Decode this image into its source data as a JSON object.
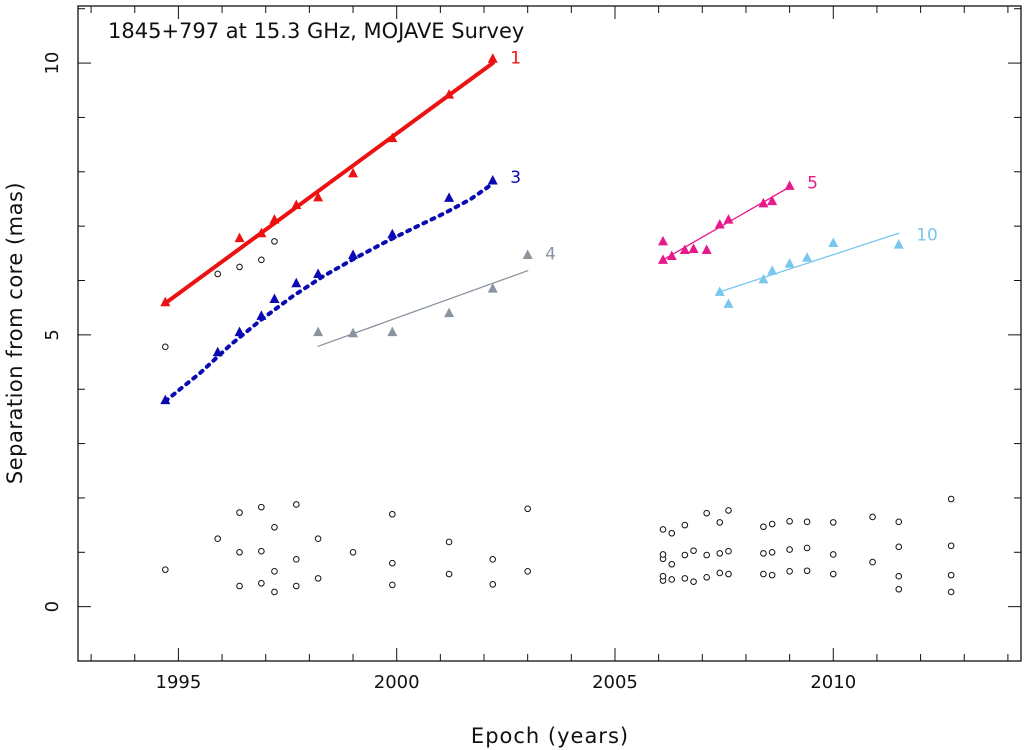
{
  "chart_data": {
    "type": "scatter",
    "title": "1845+797 at 15.3 GHz, MOJAVE Survey",
    "xlabel": "Epoch (years)",
    "ylabel": "Separation from core (mas)",
    "xlim": [
      1992.7,
      2014.3
    ],
    "ylim": [
      -1.0,
      11.05
    ],
    "x_ticks": [
      {
        "value": 1995,
        "label": "1995"
      },
      {
        "value": 2000,
        "label": "2000"
      },
      {
        "value": 2005,
        "label": "2005"
      },
      {
        "value": 2010,
        "label": "2010"
      }
    ],
    "y_ticks": [
      {
        "value": 0,
        "label": "0"
      },
      {
        "value": 5,
        "label": "5"
      },
      {
        "value": 10,
        "label": "10"
      }
    ],
    "series": [
      {
        "name": "1",
        "color": "#ee1111",
        "fit_style": "solid-thick",
        "points": [
          [
            1994.7,
            5.6
          ],
          [
            1996.4,
            6.78
          ],
          [
            1996.9,
            6.87
          ],
          [
            1997.2,
            7.12
          ],
          [
            1997.7,
            7.39
          ],
          [
            1998.2,
            7.53
          ],
          [
            1999.0,
            7.97
          ],
          [
            1999.9,
            8.62
          ],
          [
            2001.2,
            9.42
          ],
          [
            2002.2,
            10.08
          ]
        ],
        "fit": [
          [
            1994.7,
            5.58
          ],
          [
            2002.2,
            10.0
          ]
        ],
        "label_pos": [
          2002.6,
          10.1
        ]
      },
      {
        "name": "3",
        "color": "#0a0ab4",
        "fit_style": "dotted-thick",
        "points": [
          [
            1994.7,
            3.8
          ],
          [
            1995.9,
            4.68
          ],
          [
            1996.4,
            5.05
          ],
          [
            1996.9,
            5.35
          ],
          [
            1997.2,
            5.66
          ],
          [
            1997.7,
            5.95
          ],
          [
            1998.2,
            6.12
          ],
          [
            1999.0,
            6.47
          ],
          [
            1999.9,
            6.85
          ],
          [
            2001.2,
            7.52
          ],
          [
            2002.2,
            7.84
          ]
        ],
        "fit": [
          [
            1994.7,
            3.78
          ],
          [
            1995.5,
            4.3
          ],
          [
            1996.2,
            4.82
          ],
          [
            1996.9,
            5.28
          ],
          [
            1997.6,
            5.7
          ],
          [
            1998.3,
            6.07
          ],
          [
            1999.0,
            6.39
          ],
          [
            1999.7,
            6.69
          ],
          [
            2000.4,
            6.97
          ],
          [
            2001.1,
            7.24
          ],
          [
            2001.7,
            7.5
          ],
          [
            2002.2,
            7.78
          ]
        ],
        "label_pos": [
          2002.6,
          7.9
        ]
      },
      {
        "name": "4",
        "color": "#8a94a0",
        "fit_style": "solid-thin",
        "points": [
          [
            1998.2,
            5.05
          ],
          [
            1999.0,
            5.03
          ],
          [
            1999.9,
            5.05
          ],
          [
            2001.2,
            5.4
          ],
          [
            2002.2,
            5.85
          ],
          [
            2003.0,
            6.47
          ]
        ],
        "fit": [
          [
            1998.2,
            4.79
          ],
          [
            2003.0,
            6.18
          ]
        ],
        "label_pos": [
          2003.4,
          6.5
        ]
      },
      {
        "name": "5",
        "color": "#e8198a",
        "fit_style": "solid-thin",
        "points": [
          [
            2006.1,
            6.72
          ],
          [
            2006.1,
            6.38
          ],
          [
            2006.3,
            6.45
          ],
          [
            2006.6,
            6.56
          ],
          [
            2006.8,
            6.58
          ],
          [
            2007.1,
            6.56
          ],
          [
            2007.4,
            7.03
          ],
          [
            2007.6,
            7.12
          ],
          [
            2008.4,
            7.42
          ],
          [
            2008.6,
            7.46
          ],
          [
            2009.0,
            7.74
          ]
        ],
        "fit": [
          [
            2006.1,
            6.38
          ],
          [
            2009.0,
            7.72
          ]
        ],
        "label_pos": [
          2009.4,
          7.8
        ]
      },
      {
        "name": "10",
        "color": "#79c6ee",
        "fit_style": "solid-thin",
        "points": [
          [
            2007.4,
            5.79
          ],
          [
            2007.6,
            5.57
          ],
          [
            2008.4,
            6.02
          ],
          [
            2008.6,
            6.18
          ],
          [
            2009.0,
            6.31
          ],
          [
            2009.4,
            6.42
          ],
          [
            2010.0,
            6.69
          ],
          [
            2011.5,
            6.66
          ]
        ],
        "fit": [
          [
            2007.4,
            5.79
          ],
          [
            2011.5,
            6.87
          ]
        ],
        "label_pos": [
          2011.9,
          6.85
        ]
      }
    ],
    "unassigned": {
      "marker": "open-circle",
      "color": "#111111",
      "points": [
        [
          1994.7,
          0.68
        ],
        [
          1994.7,
          4.78
        ],
        [
          1995.9,
          1.25
        ],
        [
          1995.9,
          6.12
        ],
        [
          1996.4,
          0.38
        ],
        [
          1996.4,
          1.0
        ],
        [
          1996.4,
          1.73
        ],
        [
          1996.4,
          6.25
        ],
        [
          1996.9,
          0.43
        ],
        [
          1996.9,
          1.02
        ],
        [
          1996.9,
          1.83
        ],
        [
          1996.9,
          6.38
        ],
        [
          1997.2,
          0.27
        ],
        [
          1997.2,
          0.65
        ],
        [
          1997.2,
          1.46
        ],
        [
          1997.2,
          6.72
        ],
        [
          1997.7,
          0.38
        ],
        [
          1997.7,
          0.87
        ],
        [
          1997.7,
          1.88
        ],
        [
          1998.2,
          0.52
        ],
        [
          1998.2,
          1.25
        ],
        [
          1999.0,
          1.0
        ],
        [
          1999.9,
          0.4
        ],
        [
          1999.9,
          0.8
        ],
        [
          1999.9,
          1.7
        ],
        [
          2001.2,
          0.6
        ],
        [
          2001.2,
          1.19
        ],
        [
          2002.2,
          0.41
        ],
        [
          2002.2,
          0.87
        ],
        [
          2003.0,
          0.65
        ],
        [
          2003.0,
          1.8
        ],
        [
          2006.1,
          0.48
        ],
        [
          2006.1,
          0.56
        ],
        [
          2006.1,
          0.88
        ],
        [
          2006.1,
          0.96
        ],
        [
          2006.1,
          1.42
        ],
        [
          2006.3,
          0.5
        ],
        [
          2006.3,
          0.78
        ],
        [
          2006.3,
          1.35
        ],
        [
          2006.6,
          0.52
        ],
        [
          2006.6,
          0.95
        ],
        [
          2006.6,
          1.5
        ],
        [
          2006.8,
          0.46
        ],
        [
          2006.8,
          1.03
        ],
        [
          2007.1,
          0.54
        ],
        [
          2007.1,
          0.95
        ],
        [
          2007.1,
          1.72
        ],
        [
          2007.4,
          0.62
        ],
        [
          2007.4,
          0.98
        ],
        [
          2007.4,
          1.55
        ],
        [
          2007.6,
          0.6
        ],
        [
          2007.6,
          1.02
        ],
        [
          2007.6,
          1.77
        ],
        [
          2008.4,
          0.6
        ],
        [
          2008.4,
          0.98
        ],
        [
          2008.4,
          1.47
        ],
        [
          2008.6,
          0.58
        ],
        [
          2008.6,
          1.0
        ],
        [
          2008.6,
          1.52
        ],
        [
          2009.0,
          0.65
        ],
        [
          2009.0,
          1.05
        ],
        [
          2009.0,
          1.57
        ],
        [
          2009.4,
          0.66
        ],
        [
          2009.4,
          1.08
        ],
        [
          2009.4,
          1.56
        ],
        [
          2010.0,
          0.6
        ],
        [
          2010.0,
          0.96
        ],
        [
          2010.0,
          1.55
        ],
        [
          2010.9,
          0.82
        ],
        [
          2010.9,
          1.65
        ],
        [
          2011.5,
          0.32
        ],
        [
          2011.5,
          0.56
        ],
        [
          2011.5,
          1.1
        ],
        [
          2011.5,
          1.56
        ],
        [
          2012.7,
          0.27
        ],
        [
          2012.7,
          0.58
        ],
        [
          2012.7,
          1.12
        ],
        [
          2012.7,
          1.98
        ]
      ]
    }
  }
}
